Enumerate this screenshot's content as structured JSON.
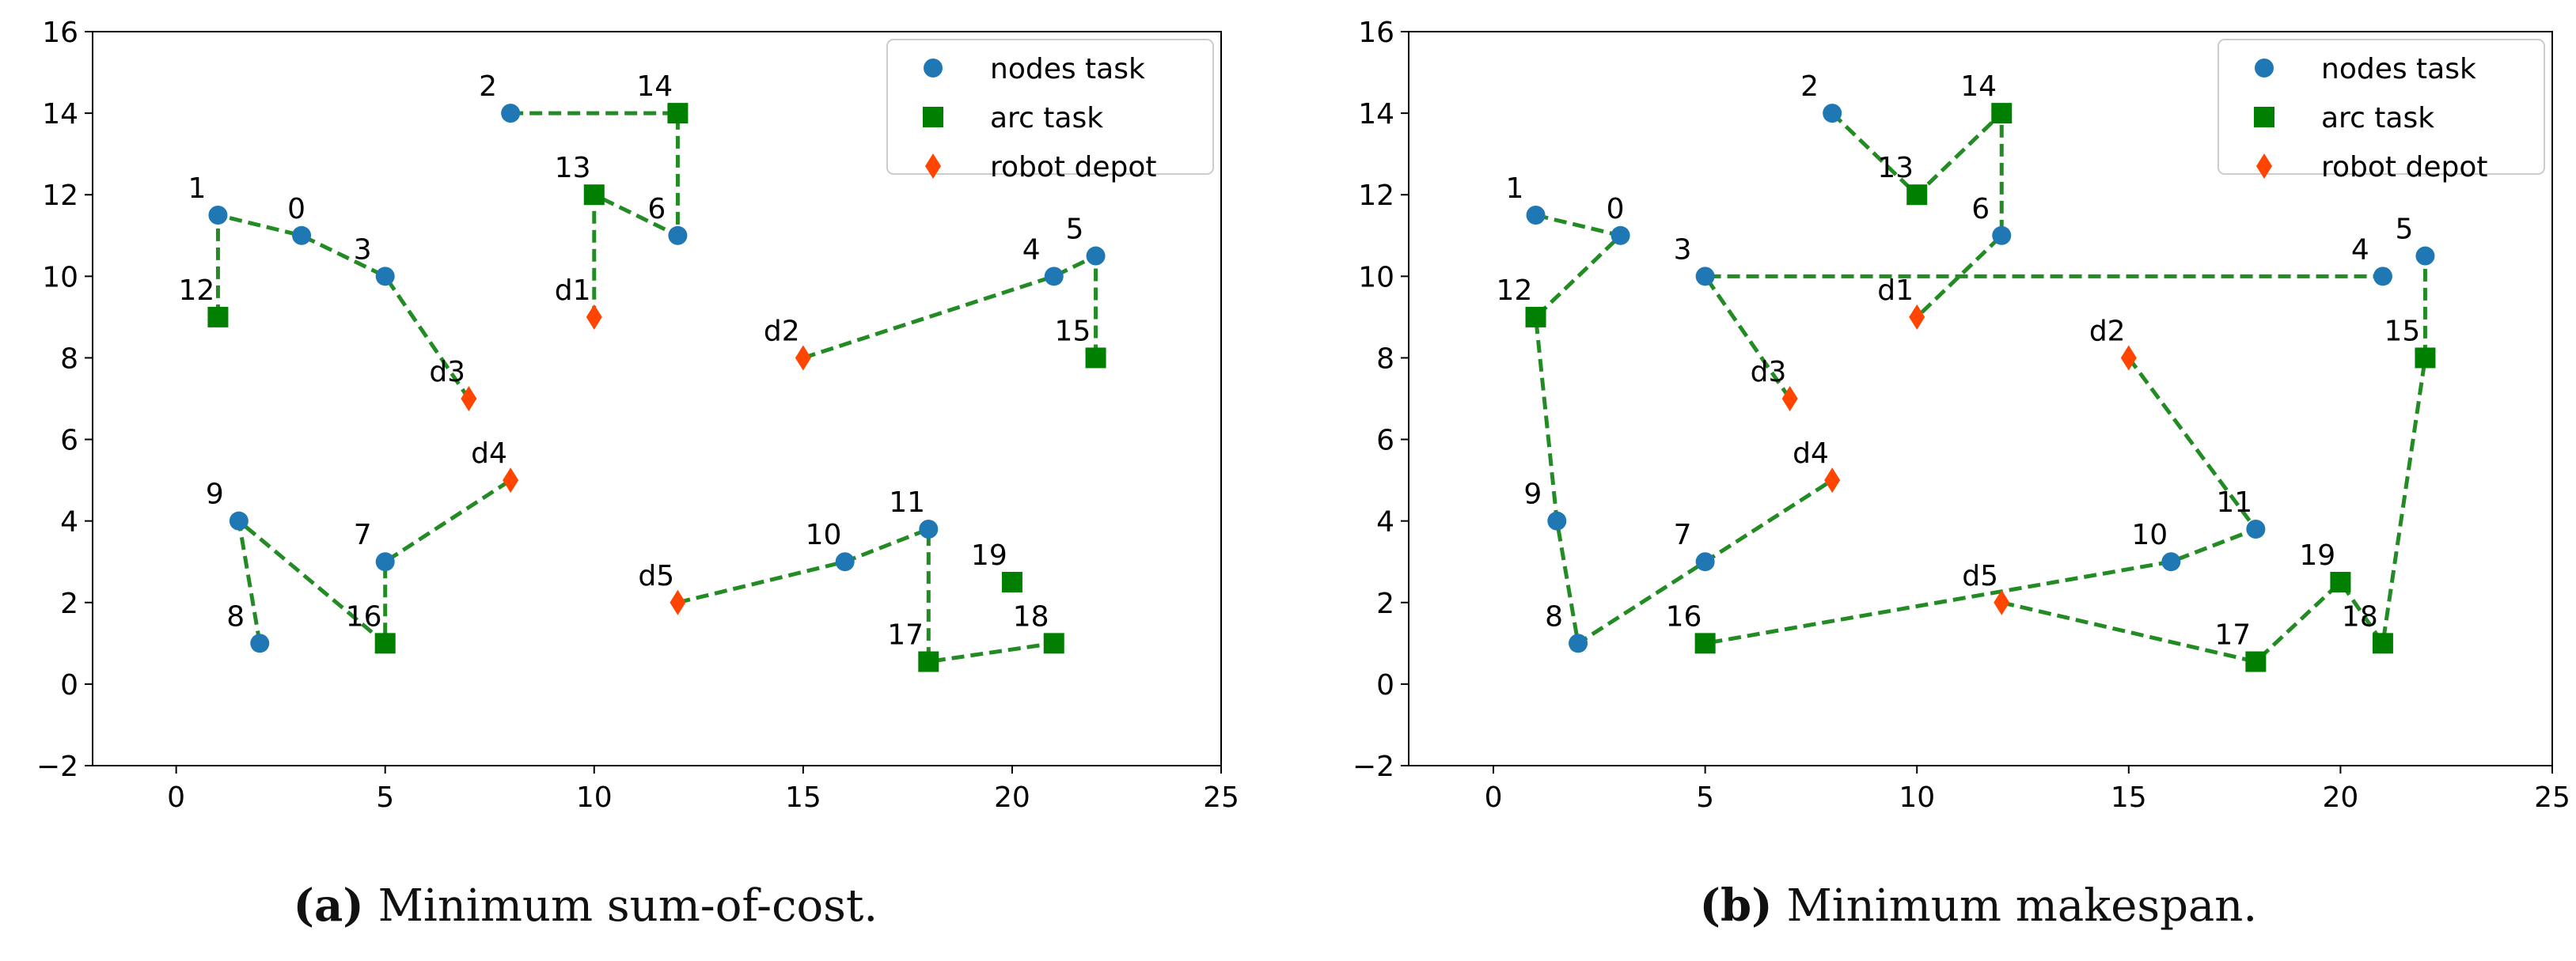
{
  "colors": {
    "node": "#1f77b4",
    "arc": "#007f00",
    "depot": "#ff4500",
    "route": "#238b23",
    "axis": "#000000"
  },
  "chart_data": [
    {
      "type": "scatter",
      "title": "",
      "xlabel": "",
      "ylabel": "",
      "xlim": [
        -2,
        25
      ],
      "ylim": [
        -2,
        16
      ],
      "xticks": [
        0,
        5,
        10,
        15,
        20,
        25
      ],
      "yticks": [
        -2,
        0,
        2,
        4,
        6,
        8,
        10,
        12,
        14,
        16
      ],
      "legend_position": "top-right",
      "legend": [
        {
          "label": "nodes task",
          "marker": "circle"
        },
        {
          "label": "arc task",
          "marker": "square"
        },
        {
          "label": "robot depot",
          "marker": "diamond"
        }
      ],
      "caption_label": "(a)",
      "caption_text": "Minimum sum-of-cost.",
      "points": [
        {
          "id": "0",
          "kind": "node",
          "x": 3,
          "y": 11
        },
        {
          "id": "1",
          "kind": "node",
          "x": 1,
          "y": 11.5
        },
        {
          "id": "2",
          "kind": "node",
          "x": 8,
          "y": 14
        },
        {
          "id": "3",
          "kind": "node",
          "x": 5,
          "y": 10
        },
        {
          "id": "4",
          "kind": "node",
          "x": 21,
          "y": 10
        },
        {
          "id": "5",
          "kind": "node",
          "x": 22,
          "y": 10.5
        },
        {
          "id": "6",
          "kind": "node",
          "x": 12,
          "y": 11
        },
        {
          "id": "7",
          "kind": "node",
          "x": 5,
          "y": 3
        },
        {
          "id": "8",
          "kind": "node",
          "x": 2,
          "y": 1
        },
        {
          "id": "9",
          "kind": "node",
          "x": 1.5,
          "y": 4
        },
        {
          "id": "10",
          "kind": "node",
          "x": 16,
          "y": 3
        },
        {
          "id": "11",
          "kind": "node",
          "x": 18,
          "y": 3.8
        },
        {
          "id": "12",
          "kind": "arc",
          "x": 1,
          "y": 9
        },
        {
          "id": "13",
          "kind": "arc",
          "x": 10,
          "y": 12
        },
        {
          "id": "14",
          "kind": "arc",
          "x": 12,
          "y": 14
        },
        {
          "id": "15",
          "kind": "arc",
          "x": 22,
          "y": 8
        },
        {
          "id": "16",
          "kind": "arc",
          "x": 5,
          "y": 1
        },
        {
          "id": "17",
          "kind": "arc",
          "x": 18,
          "y": 0.55
        },
        {
          "id": "18",
          "kind": "arc",
          "x": 21,
          "y": 1
        },
        {
          "id": "19",
          "kind": "arc",
          "x": 20,
          "y": 2.5
        },
        {
          "id": "d1",
          "kind": "depot",
          "x": 10,
          "y": 9
        },
        {
          "id": "d2",
          "kind": "depot",
          "x": 15,
          "y": 8
        },
        {
          "id": "d3",
          "kind": "depot",
          "x": 7,
          "y": 7
        },
        {
          "id": "d4",
          "kind": "depot",
          "x": 8,
          "y": 5
        },
        {
          "id": "d5",
          "kind": "depot",
          "x": 12,
          "y": 2
        }
      ],
      "routes": [
        [
          "12",
          "1",
          "0",
          "3",
          "d3"
        ],
        [
          "2",
          "14",
          "6",
          "13",
          "d1"
        ],
        [
          "d2",
          "4",
          "5",
          "15"
        ],
        [
          "8",
          "9",
          "16",
          "7",
          "d4"
        ],
        [
          "d5",
          "10",
          "11",
          "17",
          "18"
        ]
      ]
    },
    {
      "type": "scatter",
      "title": "",
      "xlabel": "",
      "ylabel": "",
      "xlim": [
        -2,
        25
      ],
      "ylim": [
        -2,
        16
      ],
      "xticks": [
        0,
        5,
        10,
        15,
        20,
        25
      ],
      "yticks": [
        -2,
        0,
        2,
        4,
        6,
        8,
        10,
        12,
        14,
        16
      ],
      "legend_position": "top-right",
      "legend": [
        {
          "label": "nodes task",
          "marker": "circle"
        },
        {
          "label": "arc task",
          "marker": "square"
        },
        {
          "label": "robot depot",
          "marker": "diamond"
        }
      ],
      "caption_label": "(b)",
      "caption_text": "Minimum makespan.",
      "points": [
        {
          "id": "0",
          "kind": "node",
          "x": 3,
          "y": 11
        },
        {
          "id": "1",
          "kind": "node",
          "x": 1,
          "y": 11.5
        },
        {
          "id": "2",
          "kind": "node",
          "x": 8,
          "y": 14
        },
        {
          "id": "3",
          "kind": "node",
          "x": 5,
          "y": 10
        },
        {
          "id": "4",
          "kind": "node",
          "x": 21,
          "y": 10
        },
        {
          "id": "5",
          "kind": "node",
          "x": 22,
          "y": 10.5
        },
        {
          "id": "6",
          "kind": "node",
          "x": 12,
          "y": 11
        },
        {
          "id": "7",
          "kind": "node",
          "x": 5,
          "y": 3
        },
        {
          "id": "8",
          "kind": "node",
          "x": 2,
          "y": 1
        },
        {
          "id": "9",
          "kind": "node",
          "x": 1.5,
          "y": 4
        },
        {
          "id": "10",
          "kind": "node",
          "x": 16,
          "y": 3
        },
        {
          "id": "11",
          "kind": "node",
          "x": 18,
          "y": 3.8
        },
        {
          "id": "12",
          "kind": "arc",
          "x": 1,
          "y": 9
        },
        {
          "id": "13",
          "kind": "arc",
          "x": 10,
          "y": 12
        },
        {
          "id": "14",
          "kind": "arc",
          "x": 12,
          "y": 14
        },
        {
          "id": "15",
          "kind": "arc",
          "x": 22,
          "y": 8
        },
        {
          "id": "16",
          "kind": "arc",
          "x": 5,
          "y": 1
        },
        {
          "id": "17",
          "kind": "arc",
          "x": 18,
          "y": 0.55
        },
        {
          "id": "18",
          "kind": "arc",
          "x": 21,
          "y": 1
        },
        {
          "id": "19",
          "kind": "arc",
          "x": 20,
          "y": 2.5
        },
        {
          "id": "d1",
          "kind": "depot",
          "x": 10,
          "y": 9
        },
        {
          "id": "d2",
          "kind": "depot",
          "x": 15,
          "y": 8
        },
        {
          "id": "d3",
          "kind": "depot",
          "x": 7,
          "y": 7
        },
        {
          "id": "d4",
          "kind": "depot",
          "x": 8,
          "y": 5
        },
        {
          "id": "d5",
          "kind": "depot",
          "x": 12,
          "y": 2
        }
      ],
      "routes": [
        [
          "2",
          "13",
          "14",
          "6",
          "d1"
        ],
        [
          "1",
          "0",
          "12",
          "9",
          "8",
          "7",
          "d4"
        ],
        [
          "d3",
          "3",
          "4"
        ],
        [
          "d2",
          "11",
          "10",
          "16"
        ],
        [
          "d5",
          "17",
          "19",
          "18",
          "15",
          "5"
        ]
      ]
    }
  ]
}
